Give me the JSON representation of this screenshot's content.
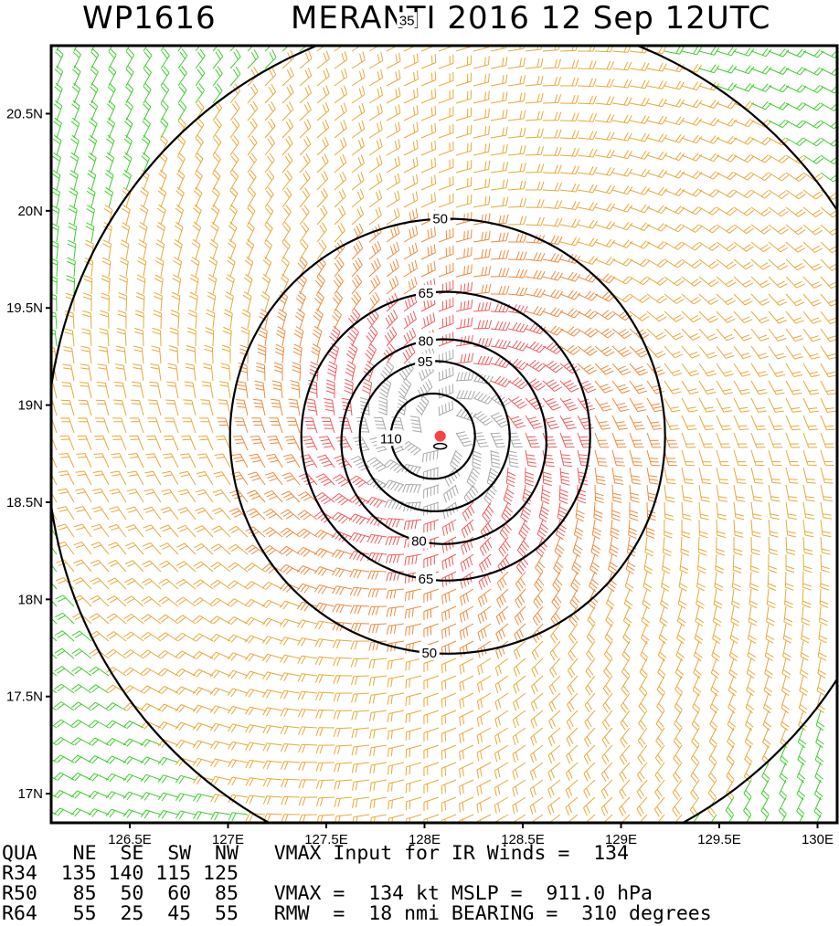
{
  "title": {
    "storm_id": "WP1616",
    "storm_info": "MERANTI 2016 12 Sep 12UTC"
  },
  "map": {
    "lon_range": [
      126.1,
      130.1
    ],
    "lat_range": [
      16.85,
      20.85
    ],
    "lat_ticks": [
      {
        "value": 17.0,
        "label": "17N"
      },
      {
        "value": 17.5,
        "label": "17.5N"
      },
      {
        "value": 18.0,
        "label": "18N"
      },
      {
        "value": 18.5,
        "label": "18.5N"
      },
      {
        "value": 19.0,
        "label": "19N"
      },
      {
        "value": 19.5,
        "label": "19.5N"
      },
      {
        "value": 20.0,
        "label": "20N"
      },
      {
        "value": 20.5,
        "label": "20.5N"
      }
    ],
    "lon_ticks": [
      {
        "value": 126.5,
        "label": "126.5E"
      },
      {
        "value": 127.0,
        "label": "127E"
      },
      {
        "value": 127.5,
        "label": "127.5E"
      },
      {
        "value": 128.0,
        "label": "128E"
      },
      {
        "value": 128.5,
        "label": "128.5E"
      },
      {
        "value": 129.0,
        "label": "129E"
      },
      {
        "value": 129.5,
        "label": "129.5E"
      },
      {
        "value": 130.0,
        "label": "130E"
      }
    ],
    "storm_center": {
      "lon": 128.08,
      "lat": 18.84
    },
    "contours": [
      {
        "value": 35,
        "label": "35"
      },
      {
        "value": 50,
        "label": "50"
      },
      {
        "value": 65,
        "label": "65"
      },
      {
        "value": 80,
        "label": "80"
      },
      {
        "value": 95,
        "label": "95"
      },
      {
        "value": 110,
        "label": "110"
      }
    ],
    "wind_colors": {
      "gt_95": "#a9a9a9",
      "65_to_95": "#f25a5a",
      "50_to_65": "#f08a3c",
      "35_to_50": "#e8a93a",
      "lt_35": "#3ccf2a"
    },
    "center_marker_color": "#ff4040"
  },
  "info": {
    "lines": [
      "QUA   NE  SE  SW  NW   VMAX Input for IR Winds =  134",
      "R34  135 140 115 125",
      "R50   85  50  60  85   VMAX =  134 kt MSLP =  911.0 hPa",
      "R64   55  25  45  55   RMW  =  18 nmi BEARING =  310 degrees"
    ]
  }
}
